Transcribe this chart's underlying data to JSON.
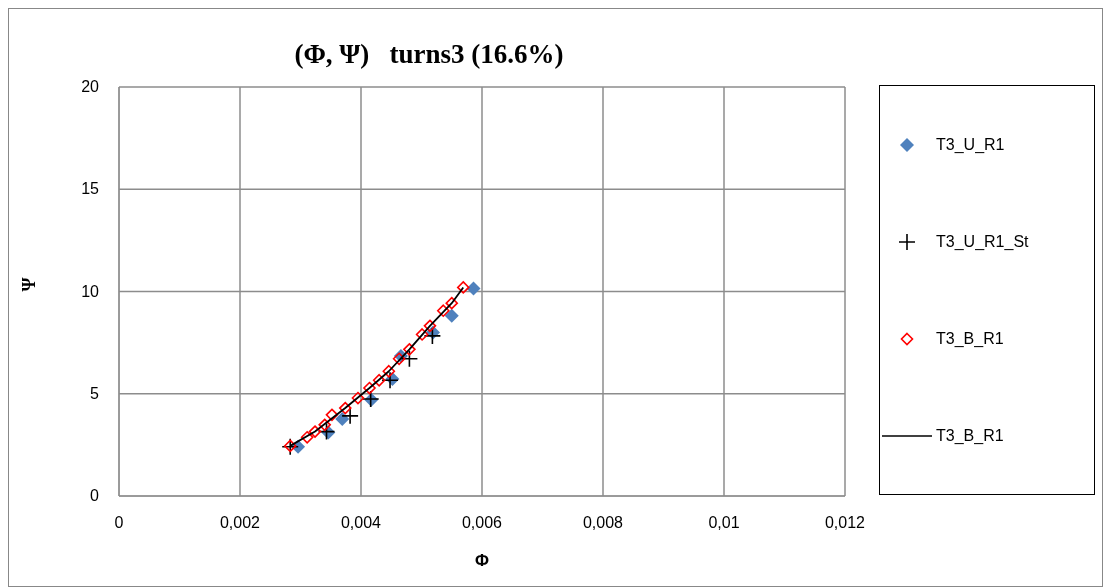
{
  "chart_data": {
    "type": "scatter",
    "title": "(Φ, Ψ)   turns3 (16.6%)",
    "xlabel": "Φ",
    "ylabel": "Ψ",
    "xlim": [
      0,
      0.012
    ],
    "xticks": [
      0,
      {
        "value": 0.002,
        "label": "0,002"
      },
      {
        "value": 0.004,
        "label": "0,004"
      },
      {
        "value": 0.006,
        "label": "0,006"
      },
      {
        "value": 0.008,
        "label": "0,008"
      },
      {
        "value": 0.01,
        "label": "0,01"
      },
      {
        "value": 0.012,
        "label": "0,012"
      }
    ],
    "ylim": [
      0,
      20
    ],
    "yticks": [
      0,
      5,
      10,
      15,
      20
    ],
    "grid": true,
    "legend": "right",
    "series": [
      {
        "name": "T3_U_R1",
        "type": "scatter",
        "marker": "diamond",
        "color": "#4f81bd",
        "x": [
          0.00296,
          0.00346,
          0.00369,
          0.00417,
          0.00452,
          0.00466,
          0.00519,
          0.0055,
          0.00586
        ],
        "values": [
          2.41,
          3.1,
          3.76,
          4.71,
          5.72,
          6.84,
          7.99,
          8.81,
          10.15
        ]
      },
      {
        "name": "T3_U_R1_St",
        "type": "scatter",
        "marker": "cross",
        "color": "#000000",
        "x": [
          0.00283,
          0.00343,
          0.00382,
          0.00416,
          0.00448,
          0.0048,
          0.00518
        ],
        "values": [
          2.41,
          3.15,
          3.92,
          4.74,
          5.66,
          6.71,
          7.83
        ]
      },
      {
        "name": "T3_B_R1",
        "type": "scatter",
        "marker": "diamond",
        "color": "#ff0000",
        "x": [
          0.00283,
          0.00311,
          0.00324,
          0.0034,
          0.00352,
          0.00374,
          0.00395,
          0.00414,
          0.0043,
          0.00446,
          0.00463,
          0.0048,
          0.00501,
          0.00514,
          0.00536,
          0.0055,
          0.00569
        ],
        "values": [
          2.45,
          2.87,
          3.15,
          3.48,
          3.97,
          4.3,
          4.79,
          5.28,
          5.66,
          6.1,
          6.71,
          7.17,
          7.9,
          8.32,
          9.06,
          9.43,
          10.2
        ]
      },
      {
        "name": "T3_B_R1",
        "type": "line",
        "marker": "none",
        "line_style": "solid",
        "color": "#000000",
        "x": [
          0.00283,
          0.00324,
          0.00374,
          0.00414,
          0.00446,
          0.0048,
          0.00514,
          0.0055,
          0.00569
        ],
        "values": [
          2.45,
          3.15,
          4.3,
          5.28,
          6.1,
          7.17,
          8.32,
          9.43,
          10.2
        ]
      }
    ]
  }
}
